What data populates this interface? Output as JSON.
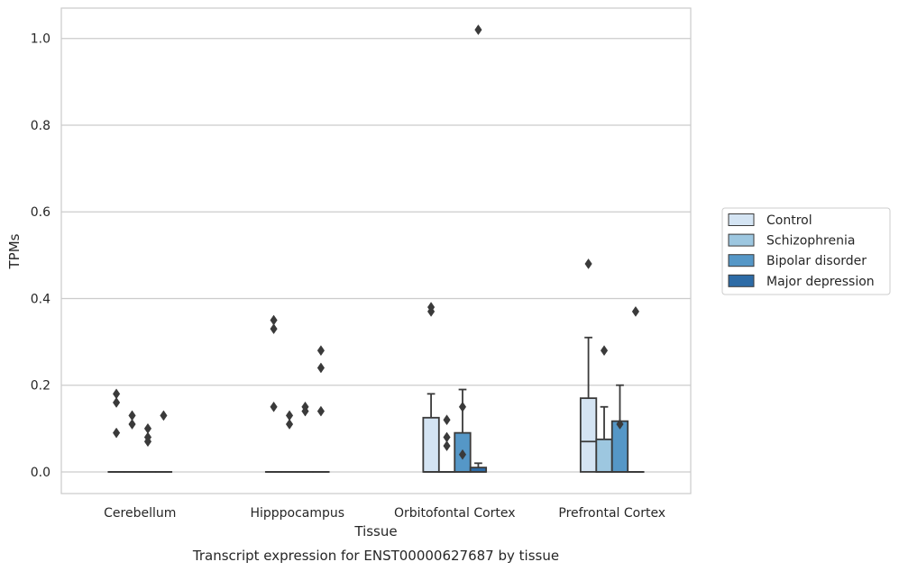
{
  "chart_data": {
    "type": "boxplot",
    "xlabel": "Tissue",
    "ylabel": "TPMs",
    "caption": "Transcript expression for ENST00000627687 by tissue",
    "categories": [
      "Cerebellum",
      "Hipppocampus",
      "Orbitofontal Cortex",
      "Prefrontal Cortex"
    ],
    "ylim": [
      -0.05,
      1.07
    ],
    "yticks": [
      0.0,
      0.2,
      0.4,
      0.6,
      0.8,
      1.0
    ],
    "ytick_labels": [
      "0.0",
      "0.2",
      "0.4",
      "0.6",
      "0.8",
      "1.0"
    ],
    "grid": "horizontal",
    "legend_position": "right",
    "series": [
      {
        "name": "Control",
        "color": "#d4e4f3",
        "boxes": [
          {
            "q1": 0,
            "median": 0,
            "q3": 0,
            "whisker_low": 0,
            "whisker_high": 0,
            "outliers": [
              0.18,
              0.16,
              0.09
            ]
          },
          {
            "q1": 0,
            "median": 0,
            "q3": 0,
            "whisker_low": 0,
            "whisker_high": 0,
            "outliers": [
              0.35,
              0.33,
              0.15
            ]
          },
          {
            "q1": 0,
            "median": 0,
            "q3": 0.125,
            "whisker_low": 0,
            "whisker_high": 0.18,
            "outliers": [
              0.38,
              0.37
            ]
          },
          {
            "q1": 0,
            "median": 0.07,
            "q3": 0.17,
            "whisker_low": 0,
            "whisker_high": 0.31,
            "outliers": [
              0.48
            ]
          }
        ]
      },
      {
        "name": "Schizophrenia",
        "color": "#9dc7e0",
        "boxes": [
          {
            "q1": 0,
            "median": 0,
            "q3": 0,
            "whisker_low": 0,
            "whisker_high": 0,
            "outliers": [
              0.13,
              0.11
            ]
          },
          {
            "q1": 0,
            "median": 0,
            "q3": 0,
            "whisker_low": 0,
            "whisker_high": 0,
            "outliers": [
              0.13,
              0.11
            ]
          },
          {
            "q1": 0,
            "median": 0,
            "q3": 0,
            "whisker_low": 0,
            "whisker_high": 0,
            "outliers": [
              0.12,
              0.08,
              0.06
            ]
          },
          {
            "q1": 0,
            "median": 0,
            "q3": 0.075,
            "whisker_low": 0,
            "whisker_high": 0.15,
            "outliers": [
              0.28
            ]
          }
        ]
      },
      {
        "name": "Bipolar disorder",
        "color": "#5597c7",
        "boxes": [
          {
            "q1": 0,
            "median": 0,
            "q3": 0,
            "whisker_low": 0,
            "whisker_high": 0,
            "outliers": [
              0.1,
              0.08,
              0.07
            ]
          },
          {
            "q1": 0,
            "median": 0,
            "q3": 0,
            "whisker_low": 0,
            "whisker_high": 0,
            "outliers": [
              0.15,
              0.14
            ]
          },
          {
            "q1": 0,
            "median": 0,
            "q3": 0.09,
            "whisker_low": 0,
            "whisker_high": 0.19,
            "outliers": [
              0.15,
              0.04
            ]
          },
          {
            "q1": 0,
            "median": 0,
            "q3": 0.117,
            "whisker_low": 0,
            "whisker_high": 0.2,
            "outliers": [
              0.11
            ]
          }
        ]
      },
      {
        "name": "Major depression",
        "color": "#2d6ba6",
        "boxes": [
          {
            "q1": 0,
            "median": 0,
            "q3": 0,
            "whisker_low": 0,
            "whisker_high": 0,
            "outliers": [
              0.13
            ]
          },
          {
            "q1": 0,
            "median": 0,
            "q3": 0,
            "whisker_low": 0,
            "whisker_high": 0,
            "outliers": [
              0.28,
              0.24,
              0.14
            ]
          },
          {
            "q1": 0,
            "median": 0,
            "q3": 0.01,
            "whisker_low": 0,
            "whisker_high": 0.02,
            "outliers": [
              1.02
            ]
          },
          {
            "q1": 0,
            "median": 0,
            "q3": 0,
            "whisker_low": 0,
            "whisker_high": 0,
            "outliers": [
              0.37
            ]
          }
        ]
      }
    ]
  }
}
